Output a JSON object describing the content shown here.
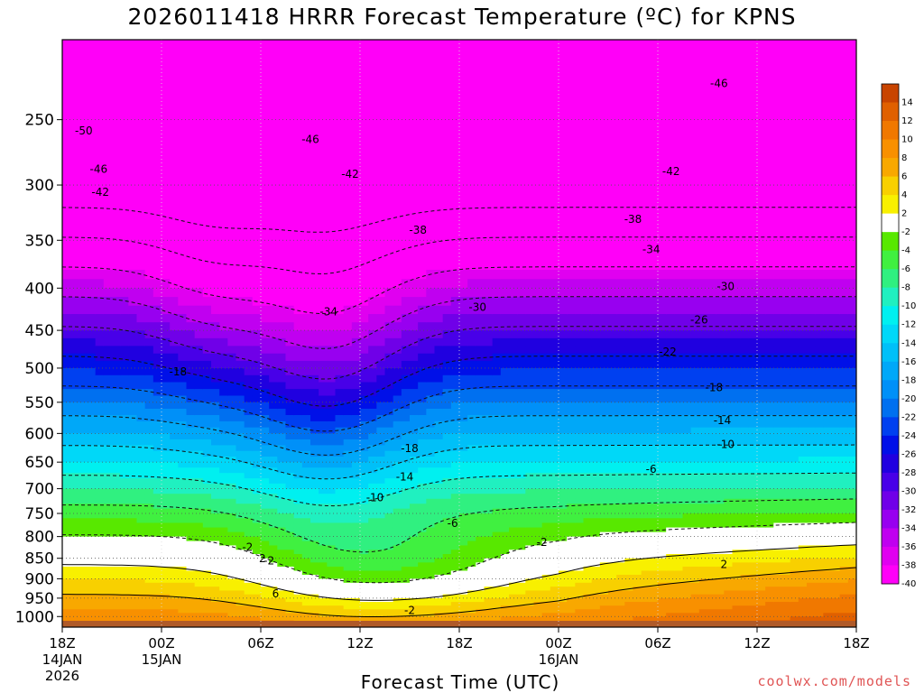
{
  "chart_data": {
    "type": "heatmap",
    "title": "2026011418 HRRR Forecast Temperature (ºC) for KPNS",
    "xlabel": "Forecast Time (UTC)",
    "ylabel": "",
    "y_scale": "log",
    "ylim": [
      1030,
      200
    ],
    "y_ticks": [
      250,
      300,
      350,
      400,
      450,
      500,
      550,
      600,
      650,
      700,
      750,
      800,
      850,
      900,
      950,
      1000
    ],
    "x_ticks": [
      {
        "label": "18Z",
        "sub": [
          "14JAN",
          "2026"
        ],
        "hour": 0
      },
      {
        "label": "00Z",
        "sub": [
          "15JAN"
        ],
        "hour": 6
      },
      {
        "label": "06Z",
        "sub": [],
        "hour": 12
      },
      {
        "label": "12Z",
        "sub": [],
        "hour": 18
      },
      {
        "label": "18Z",
        "sub": [],
        "hour": 24
      },
      {
        "label": "00Z",
        "sub": [
          "16JAN"
        ],
        "hour": 30
      },
      {
        "label": "06Z",
        "sub": [],
        "hour": 36
      },
      {
        "label": "12Z",
        "sub": [],
        "hour": 42
      },
      {
        "label": "18Z",
        "sub": [],
        "hour": 48
      }
    ],
    "xlim": [
      0,
      48
    ],
    "grid": true,
    "colorbar": {
      "levels": [
        14,
        12,
        10,
        8,
        6,
        4,
        2,
        -2,
        -4,
        -6,
        -8,
        -10,
        -12,
        -14,
        -16,
        -18,
        -20,
        -22,
        -24,
        -26,
        -28,
        -30,
        -32,
        -34,
        -36,
        -38,
        -40
      ],
      "colors": [
        "#c84400",
        "#e06000",
        "#f07800",
        "#f89000",
        "#f8a800",
        "#f8d000",
        "#f8f000",
        "#ffffff",
        "#58e800",
        "#40f040",
        "#30f080",
        "#20f0c0",
        "#00f0f0",
        "#00d8f8",
        "#00c0f8",
        "#00a8f8",
        "#0090f8",
        "#0070f0",
        "#0040f0",
        "#0010e8",
        "#2000e0",
        "#4800e8",
        "#7000e8",
        "#9800f0",
        "#c000f0",
        "#e000f0",
        "#ff00f8"
      ]
    },
    "contour_labels": [
      {
        "text": "-50",
        "hour": 1.3,
        "p": 258
      },
      {
        "text": "-46",
        "hour": 2.2,
        "p": 287
      },
      {
        "text": "-42",
        "hour": 2.3,
        "p": 306
      },
      {
        "text": "-46",
        "hour": 15,
        "p": 264
      },
      {
        "text": "-42",
        "hour": 17.4,
        "p": 291
      },
      {
        "text": "-38",
        "hour": 21.5,
        "p": 340
      },
      {
        "text": "-34",
        "hour": 16.1,
        "p": 427
      },
      {
        "text": "-30",
        "hour": 25.1,
        "p": 422
      },
      {
        "text": "-18",
        "hour": 7.0,
        "p": 505
      },
      {
        "text": "-18",
        "hour": 21.0,
        "p": 626
      },
      {
        "text": "-14",
        "hour": 20.7,
        "p": 677
      },
      {
        "text": "-10",
        "hour": 18.9,
        "p": 718
      },
      {
        "text": "-6",
        "hour": 23.6,
        "p": 771
      },
      {
        "text": "-2",
        "hour": 11.2,
        "p": 824
      },
      {
        "text": "-2",
        "hour": 12.5,
        "p": 856
      },
      {
        "text": "-2",
        "hour": 29.0,
        "p": 813
      },
      {
        "text": "-2",
        "hour": 21.0,
        "p": 983
      },
      {
        "text": "-46",
        "hour": 39.7,
        "p": 226
      },
      {
        "text": "-42",
        "hour": 36.8,
        "p": 289
      },
      {
        "text": "-38",
        "hour": 34.5,
        "p": 330
      },
      {
        "text": "-34",
        "hour": 35.6,
        "p": 359
      },
      {
        "text": "-30",
        "hour": 40.1,
        "p": 398
      },
      {
        "text": "-26",
        "hour": 38.5,
        "p": 437
      },
      {
        "text": "-22",
        "hour": 36.6,
        "p": 478
      },
      {
        "text": "-18",
        "hour": 39.4,
        "p": 528
      },
      {
        "text": "-14",
        "hour": 39.9,
        "p": 579
      },
      {
        "text": "-10",
        "hour": 40.1,
        "p": 619
      },
      {
        "text": "-6",
        "hour": 35.6,
        "p": 663
      },
      {
        "text": "2",
        "hour": 40.0,
        "p": 865
      },
      {
        "text": "2",
        "hour": 12.1,
        "p": 851
      },
      {
        "text": "6",
        "hour": 12.9,
        "p": 938
      }
    ]
  },
  "title": "2026011418 HRRR Forecast Temperature (ºC) for KPNS",
  "xlabel": "Forecast Time (UTC)",
  "credit": "coolwx.com/models"
}
